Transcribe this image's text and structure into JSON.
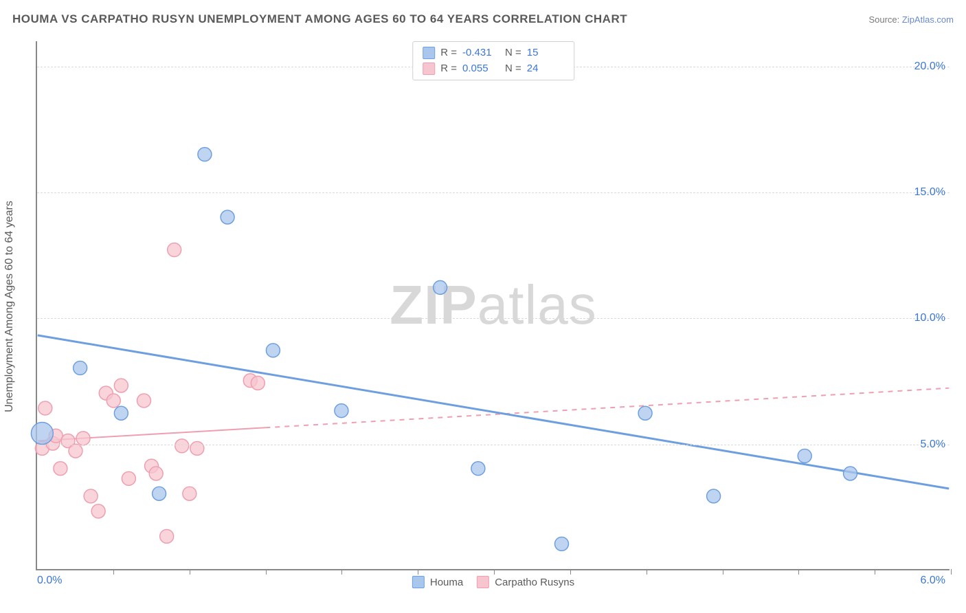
{
  "header": {
    "title": "HOUMA VS CARPATHO RUSYN UNEMPLOYMENT AMONG AGES 60 TO 64 YEARS CORRELATION CHART",
    "title_fontsize": 17,
    "source_prefix": "Source: ",
    "source_link": "ZipAtlas.com"
  },
  "watermark": {
    "zip": "ZIP",
    "atlas": "atlas"
  },
  "chart": {
    "type": "scatter",
    "background_color": "#ffffff",
    "grid_color": "#d9d9d9",
    "axis_color": "#888888",
    "x": {
      "min": 0.0,
      "max": 6.0,
      "label_min": "0.0%",
      "label_max": "6.0%",
      "ticks": [
        0.5,
        1.0,
        1.5,
        2.0,
        2.5,
        3.0,
        3.5,
        4.0,
        4.5,
        5.0,
        5.5,
        6.0
      ]
    },
    "y": {
      "min": 0.0,
      "max": 21.0,
      "grid": [
        5.0,
        10.0,
        15.0,
        20.0
      ],
      "labels": [
        "5.0%",
        "10.0%",
        "15.0%",
        "20.0%"
      ],
      "title": "Unemployment Among Ages 60 to 64 years"
    },
    "series": [
      {
        "name": "Houma",
        "color_fill": "#a9c6ec",
        "color_stroke": "#6d9fe0",
        "marker_radius": 10,
        "trend": {
          "style": "solid",
          "width": 3,
          "x1": 0.0,
          "y1": 9.3,
          "x2": 6.0,
          "y2": 3.2,
          "dash_start_x": null
        },
        "R_label": "R =",
        "R": "-0.431",
        "N_label": "N =",
        "N": "15",
        "points": [
          {
            "x": 0.03,
            "y": 5.4,
            "r": 16
          },
          {
            "x": 0.28,
            "y": 8.0,
            "r": 10
          },
          {
            "x": 0.55,
            "y": 6.2,
            "r": 10
          },
          {
            "x": 0.8,
            "y": 3.0,
            "r": 10
          },
          {
            "x": 1.1,
            "y": 16.5,
            "r": 10
          },
          {
            "x": 1.25,
            "y": 14.0,
            "r": 10
          },
          {
            "x": 1.55,
            "y": 8.7,
            "r": 10
          },
          {
            "x": 2.0,
            "y": 6.3,
            "r": 10
          },
          {
            "x": 2.65,
            "y": 11.2,
            "r": 10
          },
          {
            "x": 2.9,
            "y": 4.0,
            "r": 10
          },
          {
            "x": 3.45,
            "y": 1.0,
            "r": 10
          },
          {
            "x": 4.0,
            "y": 6.2,
            "r": 10
          },
          {
            "x": 4.45,
            "y": 2.9,
            "r": 10
          },
          {
            "x": 5.05,
            "y": 4.5,
            "r": 10
          },
          {
            "x": 5.35,
            "y": 3.8,
            "r": 10
          }
        ]
      },
      {
        "name": "Carpatho Rusyns",
        "color_fill": "#f7c5cf",
        "color_stroke": "#ef9eb0",
        "marker_radius": 10,
        "trend": {
          "style": "dashed-after",
          "width": 2,
          "x1": 0.0,
          "y1": 5.1,
          "x2": 6.0,
          "y2": 7.2,
          "dash_start_x": 1.5
        },
        "R_label": "R =",
        "R": "0.055",
        "N_label": "N =",
        "N": "24",
        "points": [
          {
            "x": 0.03,
            "y": 4.8,
            "r": 10
          },
          {
            "x": 0.05,
            "y": 6.4,
            "r": 10
          },
          {
            "x": 0.1,
            "y": 5.0,
            "r": 10
          },
          {
            "x": 0.12,
            "y": 5.3,
            "r": 10
          },
          {
            "x": 0.15,
            "y": 4.0,
            "r": 10
          },
          {
            "x": 0.2,
            "y": 5.1,
            "r": 10
          },
          {
            "x": 0.25,
            "y": 4.7,
            "r": 10
          },
          {
            "x": 0.3,
            "y": 5.2,
            "r": 10
          },
          {
            "x": 0.35,
            "y": 2.9,
            "r": 10
          },
          {
            "x": 0.4,
            "y": 2.3,
            "r": 10
          },
          {
            "x": 0.45,
            "y": 7.0,
            "r": 10
          },
          {
            "x": 0.5,
            "y": 6.7,
            "r": 10
          },
          {
            "x": 0.55,
            "y": 7.3,
            "r": 10
          },
          {
            "x": 0.6,
            "y": 3.6,
            "r": 10
          },
          {
            "x": 0.7,
            "y": 6.7,
            "r": 10
          },
          {
            "x": 0.75,
            "y": 4.1,
            "r": 10
          },
          {
            "x": 0.78,
            "y": 3.8,
            "r": 10
          },
          {
            "x": 0.85,
            "y": 1.3,
            "r": 10
          },
          {
            "x": 0.9,
            "y": 12.7,
            "r": 10
          },
          {
            "x": 0.95,
            "y": 4.9,
            "r": 10
          },
          {
            "x": 1.0,
            "y": 3.0,
            "r": 10
          },
          {
            "x": 1.05,
            "y": 4.8,
            "r": 10
          },
          {
            "x": 1.4,
            "y": 7.5,
            "r": 10
          },
          {
            "x": 1.45,
            "y": 7.4,
            "r": 10
          }
        ]
      }
    ],
    "legend_bottom": [
      {
        "label": "Houma",
        "fill": "#a9c6ec",
        "stroke": "#6d9fe0"
      },
      {
        "label": "Carpatho Rusyns",
        "fill": "#f7c5cf",
        "stroke": "#ef9eb0"
      }
    ]
  }
}
